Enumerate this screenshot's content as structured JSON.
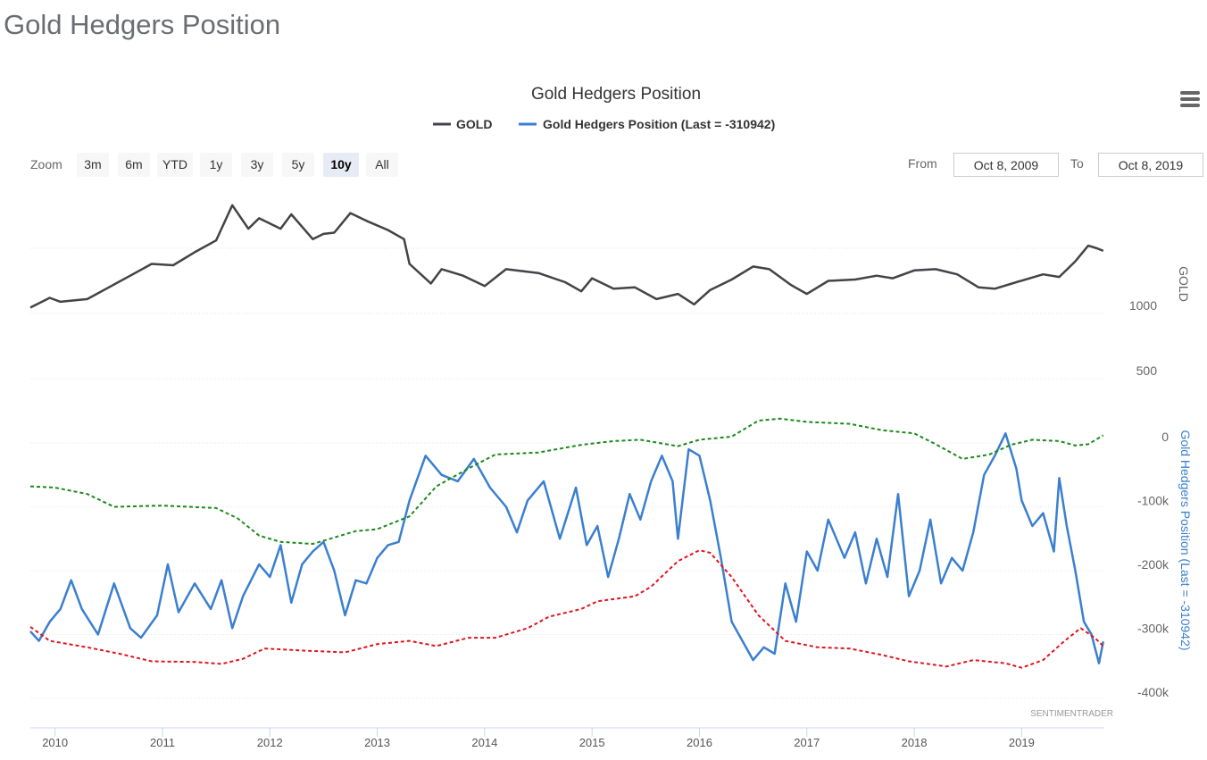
{
  "page": {
    "title": "Gold Hedgers Position"
  },
  "menu": {
    "icon": "hamburger-menu-icon"
  },
  "zoom": {
    "label": "Zoom",
    "buttons": [
      "3m",
      "6m",
      "YTD",
      "1y",
      "3y",
      "5y",
      "10y",
      "All"
    ],
    "active": "10y"
  },
  "range": {
    "from_label": "From",
    "from_value": "Oct 8, 2009",
    "to_label": "To",
    "to_value": "Oct 8, 2019"
  },
  "credit": "SENTIMENTRADER",
  "colors": {
    "gold": "#434348",
    "hedgers": "#3a7fd0",
    "upper_band": "#1a8a1a",
    "lower_band": "#e0141e"
  },
  "chart_data": {
    "type": "line",
    "title": "Gold Hedgers Position",
    "legend": {
      "placement": "top-center",
      "items": [
        "GOLD",
        "Gold Hedgers Position (Last = -310942)"
      ]
    },
    "x_ticks": [
      "2010",
      "2011",
      "2012",
      "2013",
      "2014",
      "2015",
      "2016",
      "2017",
      "2018",
      "2019"
    ],
    "x_range": [
      2009.77,
      2019.77
    ],
    "gold_axis": {
      "label": "GOLD",
      "ticks": [
        "1000",
        "500"
      ],
      "tick_values": [
        1000,
        500
      ]
    },
    "hedgers_axis": {
      "label": "Gold Hedgers Position (Last = -310942)",
      "ticks": [
        "0",
        "-100k",
        "-200k",
        "-300k",
        "-400k"
      ],
      "tick_values": [
        0,
        -100000,
        -200000,
        -300000,
        -400000
      ]
    },
    "series": [
      {
        "name": "GOLD",
        "axis": "gold",
        "points": [
          [
            2009.77,
            1045
          ],
          [
            2009.95,
            1120
          ],
          [
            2010.05,
            1090
          ],
          [
            2010.3,
            1110
          ],
          [
            2010.5,
            1200
          ],
          [
            2010.7,
            1290
          ],
          [
            2010.9,
            1380
          ],
          [
            2011.1,
            1370
          ],
          [
            2011.3,
            1470
          ],
          [
            2011.5,
            1560
          ],
          [
            2011.65,
            1830
          ],
          [
            2011.8,
            1650
          ],
          [
            2011.9,
            1730
          ],
          [
            2012.1,
            1650
          ],
          [
            2012.2,
            1760
          ],
          [
            2012.4,
            1570
          ],
          [
            2012.5,
            1610
          ],
          [
            2012.6,
            1620
          ],
          [
            2012.75,
            1770
          ],
          [
            2012.9,
            1710
          ],
          [
            2013.1,
            1640
          ],
          [
            2013.25,
            1570
          ],
          [
            2013.3,
            1380
          ],
          [
            2013.5,
            1230
          ],
          [
            2013.6,
            1340
          ],
          [
            2013.8,
            1290
          ],
          [
            2014.0,
            1210
          ],
          [
            2014.2,
            1340
          ],
          [
            2014.5,
            1310
          ],
          [
            2014.75,
            1240
          ],
          [
            2014.9,
            1170
          ],
          [
            2015.0,
            1270
          ],
          [
            2015.2,
            1190
          ],
          [
            2015.4,
            1200
          ],
          [
            2015.6,
            1110
          ],
          [
            2015.8,
            1150
          ],
          [
            2015.95,
            1070
          ],
          [
            2016.1,
            1180
          ],
          [
            2016.3,
            1260
          ],
          [
            2016.5,
            1360
          ],
          [
            2016.65,
            1340
          ],
          [
            2016.85,
            1220
          ],
          [
            2017.0,
            1150
          ],
          [
            2017.2,
            1250
          ],
          [
            2017.45,
            1260
          ],
          [
            2017.65,
            1290
          ],
          [
            2017.8,
            1270
          ],
          [
            2018.0,
            1330
          ],
          [
            2018.2,
            1340
          ],
          [
            2018.4,
            1300
          ],
          [
            2018.6,
            1200
          ],
          [
            2018.75,
            1190
          ],
          [
            2018.95,
            1240
          ],
          [
            2019.2,
            1300
          ],
          [
            2019.35,
            1280
          ],
          [
            2019.5,
            1400
          ],
          [
            2019.62,
            1520
          ],
          [
            2019.7,
            1500
          ],
          [
            2019.76,
            1480
          ]
        ]
      },
      {
        "name": "Gold Hedgers Position",
        "axis": "hedgers",
        "points": [
          [
            2009.77,
            -295000
          ],
          [
            2009.85,
            -310000
          ],
          [
            2009.95,
            -280000
          ],
          [
            2010.05,
            -260000
          ],
          [
            2010.15,
            -215000
          ],
          [
            2010.25,
            -260000
          ],
          [
            2010.4,
            -300000
          ],
          [
            2010.55,
            -220000
          ],
          [
            2010.7,
            -290000
          ],
          [
            2010.8,
            -305000
          ],
          [
            2010.95,
            -270000
          ],
          [
            2011.05,
            -190000
          ],
          [
            2011.15,
            -265000
          ],
          [
            2011.3,
            -220000
          ],
          [
            2011.45,
            -260000
          ],
          [
            2011.55,
            -215000
          ],
          [
            2011.65,
            -290000
          ],
          [
            2011.75,
            -240000
          ],
          [
            2011.9,
            -190000
          ],
          [
            2012.0,
            -210000
          ],
          [
            2012.1,
            -160000
          ],
          [
            2012.2,
            -250000
          ],
          [
            2012.3,
            -190000
          ],
          [
            2012.4,
            -170000
          ],
          [
            2012.5,
            -155000
          ],
          [
            2012.6,
            -200000
          ],
          [
            2012.7,
            -270000
          ],
          [
            2012.8,
            -215000
          ],
          [
            2012.9,
            -220000
          ],
          [
            2013.0,
            -180000
          ],
          [
            2013.1,
            -160000
          ],
          [
            2013.2,
            -155000
          ],
          [
            2013.3,
            -90000
          ],
          [
            2013.45,
            -20000
          ],
          [
            2013.6,
            -50000
          ],
          [
            2013.75,
            -60000
          ],
          [
            2013.9,
            -25000
          ],
          [
            2014.05,
            -70000
          ],
          [
            2014.2,
            -100000
          ],
          [
            2014.3,
            -140000
          ],
          [
            2014.4,
            -90000
          ],
          [
            2014.55,
            -60000
          ],
          [
            2014.7,
            -150000
          ],
          [
            2014.85,
            -70000
          ],
          [
            2014.95,
            -160000
          ],
          [
            2015.05,
            -130000
          ],
          [
            2015.15,
            -210000
          ],
          [
            2015.25,
            -150000
          ],
          [
            2015.35,
            -80000
          ],
          [
            2015.45,
            -120000
          ],
          [
            2015.55,
            -60000
          ],
          [
            2015.65,
            -20000
          ],
          [
            2015.75,
            -60000
          ],
          [
            2015.8,
            -150000
          ],
          [
            2015.9,
            -10000
          ],
          [
            2016.0,
            -20000
          ],
          [
            2016.1,
            -90000
          ],
          [
            2016.2,
            -180000
          ],
          [
            2016.3,
            -280000
          ],
          [
            2016.4,
            -310000
          ],
          [
            2016.5,
            -340000
          ],
          [
            2016.6,
            -320000
          ],
          [
            2016.7,
            -330000
          ],
          [
            2016.8,
            -220000
          ],
          [
            2016.9,
            -280000
          ],
          [
            2017.0,
            -170000
          ],
          [
            2017.1,
            -200000
          ],
          [
            2017.2,
            -120000
          ],
          [
            2017.35,
            -180000
          ],
          [
            2017.45,
            -140000
          ],
          [
            2017.55,
            -220000
          ],
          [
            2017.65,
            -150000
          ],
          [
            2017.75,
            -210000
          ],
          [
            2017.85,
            -80000
          ],
          [
            2017.95,
            -240000
          ],
          [
            2018.05,
            -200000
          ],
          [
            2018.15,
            -120000
          ],
          [
            2018.25,
            -220000
          ],
          [
            2018.35,
            -180000
          ],
          [
            2018.45,
            -200000
          ],
          [
            2018.55,
            -140000
          ],
          [
            2018.65,
            -50000
          ],
          [
            2018.75,
            -20000
          ],
          [
            2018.85,
            15000
          ],
          [
            2018.95,
            -40000
          ],
          [
            2019.0,
            -90000
          ],
          [
            2019.1,
            -130000
          ],
          [
            2019.2,
            -110000
          ],
          [
            2019.3,
            -170000
          ],
          [
            2019.35,
            -55000
          ],
          [
            2019.42,
            -130000
          ],
          [
            2019.5,
            -200000
          ],
          [
            2019.58,
            -280000
          ],
          [
            2019.65,
            -300000
          ],
          [
            2019.72,
            -345000
          ],
          [
            2019.76,
            -310942
          ]
        ]
      },
      {
        "name": "",
        "axis": "hedgers",
        "style": "dashed",
        "points": [
          [
            2009.77,
            -68000
          ],
          [
            2010.0,
            -70000
          ],
          [
            2010.3,
            -80000
          ],
          [
            2010.55,
            -100000
          ],
          [
            2011.0,
            -98000
          ],
          [
            2011.5,
            -102000
          ],
          [
            2011.7,
            -118000
          ],
          [
            2011.9,
            -145000
          ],
          [
            2012.1,
            -155000
          ],
          [
            2012.4,
            -158000
          ],
          [
            2012.8,
            -138000
          ],
          [
            2013.0,
            -135000
          ],
          [
            2013.3,
            -115000
          ],
          [
            2013.55,
            -68000
          ],
          [
            2013.85,
            -40000
          ],
          [
            2014.1,
            -18000
          ],
          [
            2014.5,
            -15000
          ],
          [
            2014.9,
            -3000
          ],
          [
            2015.2,
            3000
          ],
          [
            2015.45,
            5000
          ],
          [
            2015.8,
            -5000
          ],
          [
            2016.0,
            5000
          ],
          [
            2016.3,
            10000
          ],
          [
            2016.55,
            35000
          ],
          [
            2016.75,
            38000
          ],
          [
            2017.0,
            33000
          ],
          [
            2017.4,
            30000
          ],
          [
            2017.7,
            20000
          ],
          [
            2018.0,
            15000
          ],
          [
            2018.2,
            -2000
          ],
          [
            2018.45,
            -25000
          ],
          [
            2018.7,
            -18000
          ],
          [
            2018.9,
            -3000
          ],
          [
            2019.1,
            5000
          ],
          [
            2019.35,
            3000
          ],
          [
            2019.5,
            -4000
          ],
          [
            2019.62,
            -2000
          ],
          [
            2019.76,
            12000
          ]
        ]
      },
      {
        "name": "",
        "axis": "hedgers",
        "style": "dashed",
        "points": [
          [
            2009.77,
            -288000
          ],
          [
            2009.95,
            -310000
          ],
          [
            2010.3,
            -320000
          ],
          [
            2010.6,
            -330000
          ],
          [
            2010.9,
            -342000
          ],
          [
            2011.3,
            -343000
          ],
          [
            2011.55,
            -346000
          ],
          [
            2011.75,
            -338000
          ],
          [
            2011.95,
            -322000
          ],
          [
            2012.3,
            -325000
          ],
          [
            2012.7,
            -328000
          ],
          [
            2013.0,
            -315000
          ],
          [
            2013.3,
            -310000
          ],
          [
            2013.55,
            -318000
          ],
          [
            2013.85,
            -305000
          ],
          [
            2014.1,
            -305000
          ],
          [
            2014.4,
            -290000
          ],
          [
            2014.6,
            -272000
          ],
          [
            2014.9,
            -260000
          ],
          [
            2015.05,
            -248000
          ],
          [
            2015.4,
            -240000
          ],
          [
            2015.55,
            -225000
          ],
          [
            2015.8,
            -185000
          ],
          [
            2016.0,
            -168000
          ],
          [
            2016.1,
            -172000
          ],
          [
            2016.3,
            -210000
          ],
          [
            2016.55,
            -270000
          ],
          [
            2016.8,
            -310000
          ],
          [
            2017.1,
            -320000
          ],
          [
            2017.4,
            -322000
          ],
          [
            2017.7,
            -332000
          ],
          [
            2017.95,
            -342000
          ],
          [
            2018.3,
            -350000
          ],
          [
            2018.55,
            -340000
          ],
          [
            2018.85,
            -345000
          ],
          [
            2019.0,
            -352000
          ],
          [
            2019.2,
            -340000
          ],
          [
            2019.4,
            -310000
          ],
          [
            2019.55,
            -290000
          ],
          [
            2019.68,
            -305000
          ],
          [
            2019.76,
            -318000
          ]
        ]
      }
    ]
  }
}
